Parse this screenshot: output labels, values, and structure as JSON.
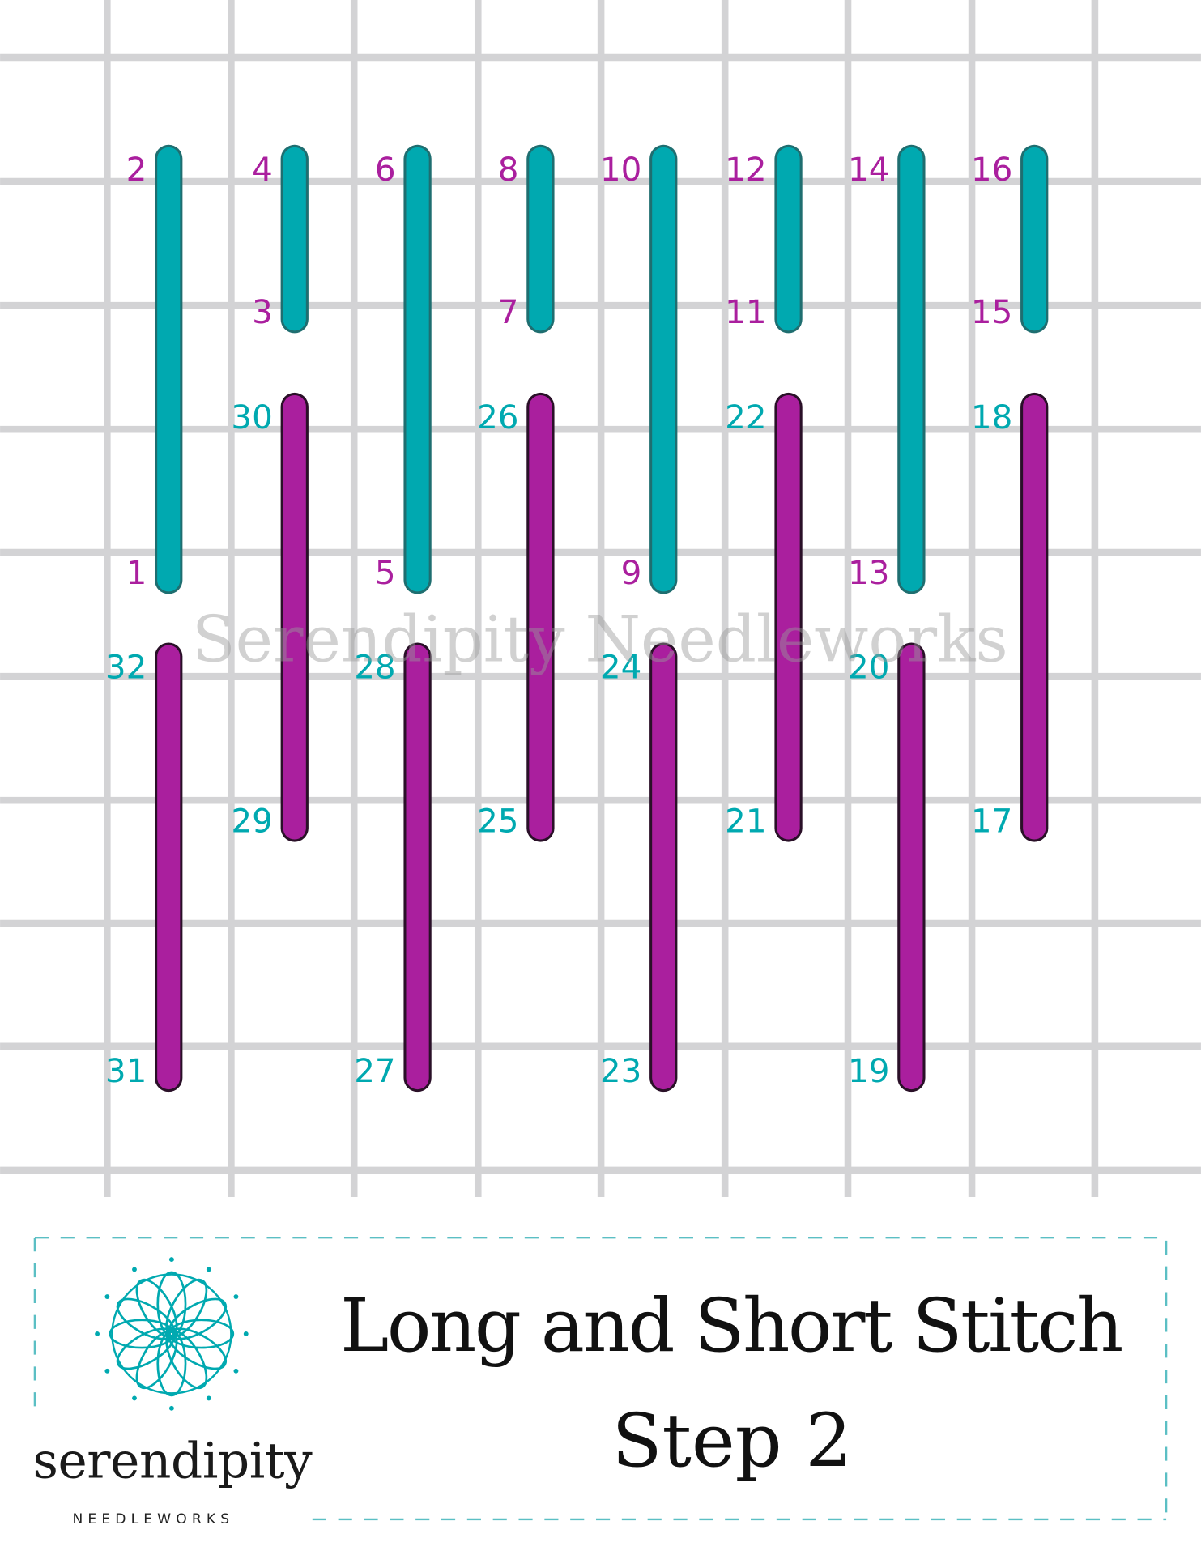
{
  "colors": {
    "grid": "#d3d3d5",
    "teal": "#00a9b0",
    "magenta": "#aa1f9e",
    "dash": "#5bbfc4"
  },
  "stitches": [
    {
      "top": "2",
      "bottom": "1",
      "color": "teal"
    },
    {
      "top": "4",
      "bottom": "3",
      "color": "teal"
    },
    {
      "top": "6",
      "bottom": "5",
      "color": "teal"
    },
    {
      "top": "8",
      "bottom": "7",
      "color": "teal"
    },
    {
      "top": "10",
      "bottom": "9",
      "color": "teal"
    },
    {
      "top": "12",
      "bottom": "11",
      "color": "teal"
    },
    {
      "top": "14",
      "bottom": "13",
      "color": "teal"
    },
    {
      "top": "16",
      "bottom": "15",
      "color": "teal"
    },
    {
      "top": "18",
      "bottom": "17",
      "color": "magenta"
    },
    {
      "top": "20",
      "bottom": "19",
      "color": "magenta"
    },
    {
      "top": "22",
      "bottom": "21",
      "color": "magenta"
    },
    {
      "top": "24",
      "bottom": "23",
      "color": "magenta"
    },
    {
      "top": "26",
      "bottom": "25",
      "color": "magenta"
    },
    {
      "top": "28",
      "bottom": "27",
      "color": "magenta"
    },
    {
      "top": "30",
      "bottom": "29",
      "color": "magenta"
    },
    {
      "top": "32",
      "bottom": "31",
      "color": "magenta"
    }
  ],
  "watermark": "Serendipity Needleworks",
  "title": {
    "line1": "Long and Short Stitch",
    "line2": "Step 2"
  },
  "logo": {
    "name": "serendipity",
    "sub": "NEEDLEWORKS",
    "icon": "mandala-icon"
  }
}
